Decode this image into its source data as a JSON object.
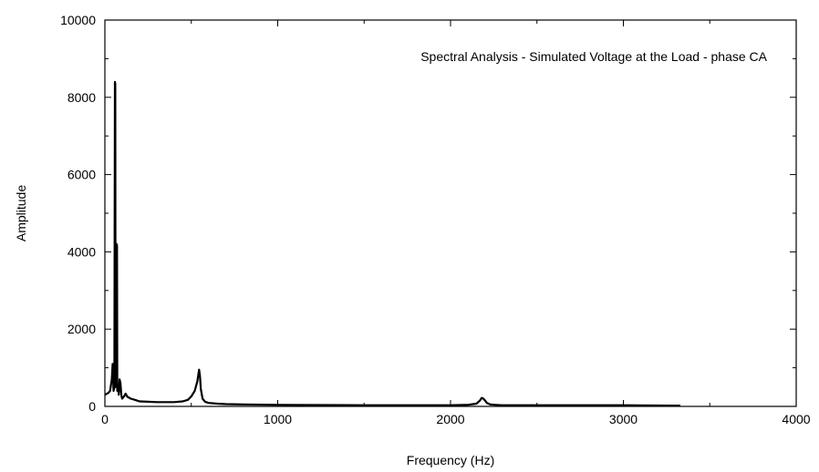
{
  "chart_data": {
    "type": "line",
    "title": "Spectral Analysis - Simulated Voltage at the Load - phase CA",
    "xlabel": "Frequency (Hz)",
    "ylabel": "Amplitude",
    "xlim": [
      0,
      4000
    ],
    "ylim": [
      0,
      10000
    ],
    "x_ticks": [
      "0",
      "1000",
      "2000",
      "3000",
      "4000"
    ],
    "y_ticks": [
      "0",
      "2000",
      "4000",
      "6000",
      "8000",
      "10000"
    ],
    "grid": false,
    "legend": "none",
    "series": [
      {
        "x": [
          0,
          20,
          30,
          40,
          45,
          50,
          55,
          58,
          60,
          62,
          65,
          68,
          70,
          72,
          75,
          78,
          80,
          85,
          90,
          95,
          100,
          110,
          120,
          130,
          150,
          180,
          200,
          250,
          300,
          350,
          400,
          450,
          480,
          500,
          520,
          535,
          545,
          550,
          555,
          565,
          580,
          600,
          650,
          700,
          800,
          1000,
          1500,
          2000,
          2100,
          2150,
          2170,
          2180,
          2190,
          2200,
          2210,
          2230,
          2260,
          2300,
          2500,
          3000,
          3330
        ],
        "y": [
          300,
          350,
          400,
          700,
          1100,
          400,
          500,
          8400,
          8350,
          500,
          600,
          4200,
          4150,
          400,
          500,
          450,
          300,
          700,
          600,
          300,
          200,
          250,
          330,
          250,
          200,
          160,
          130,
          120,
          110,
          110,
          110,
          130,
          170,
          260,
          400,
          650,
          950,
          800,
          450,
          200,
          120,
          90,
          70,
          60,
          50,
          40,
          30,
          30,
          40,
          70,
          150,
          220,
          200,
          150,
          90,
          50,
          40,
          30,
          30,
          30,
          20
        ]
      }
    ]
  }
}
